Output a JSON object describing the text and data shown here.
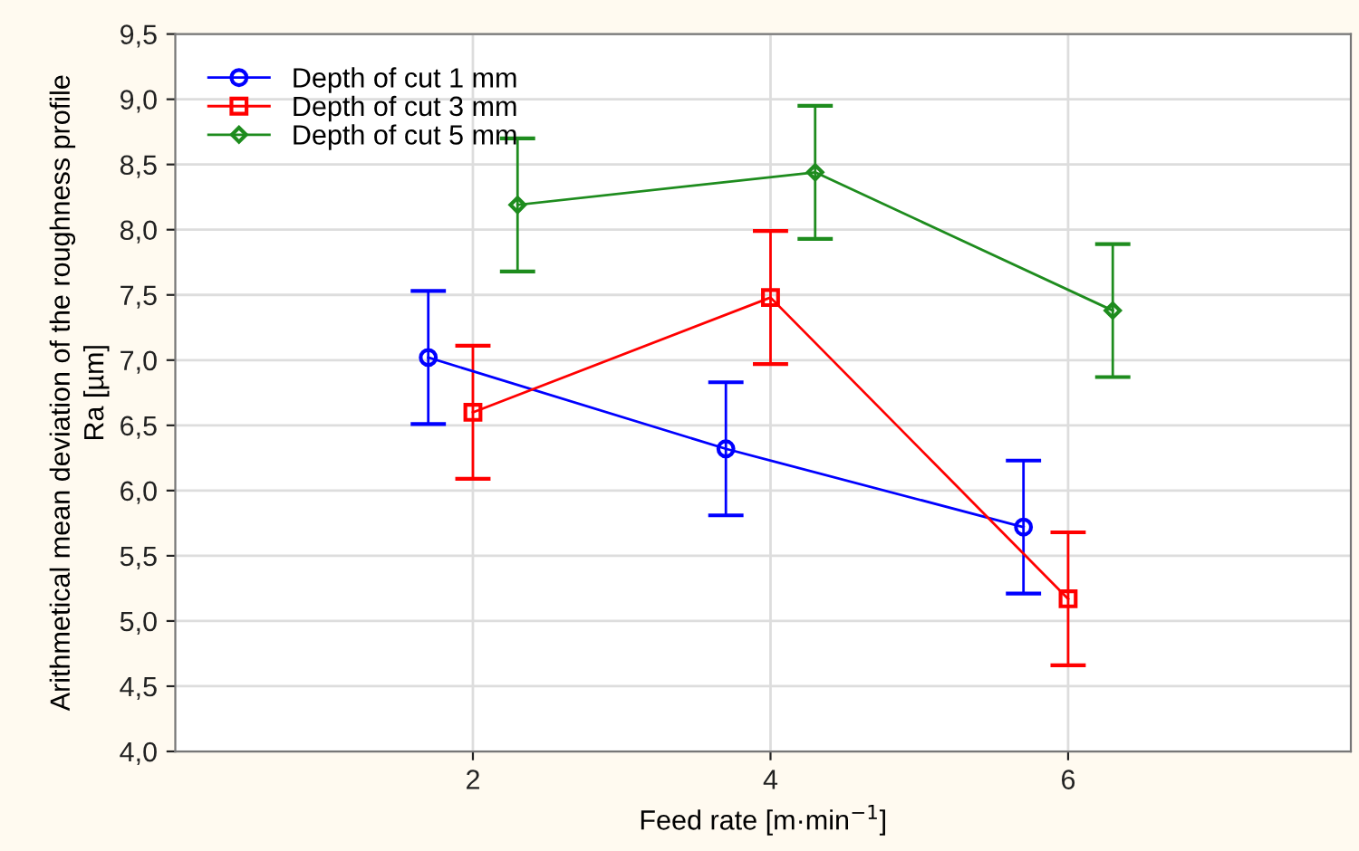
{
  "chart_data": {
    "type": "line",
    "xlabel": "Feed rate [m·min$^{−1}$]",
    "ylabel": "Arithmetical mean deviation of the roughness profile\nRa [µm]",
    "series": [
      {
        "name": "Depth of cut 1 mm",
        "color": "#0000ff",
        "marker": "circle",
        "x": [
          1.7,
          3.7,
          5.7
        ],
        "values": [
          7.02,
          6.32,
          5.72
        ],
        "errors": [
          0.51,
          0.51,
          0.51
        ]
      },
      {
        "name": "Depth of cut 3 mm",
        "color": "#ff0000",
        "marker": "square",
        "x": [
          2,
          4,
          6
        ],
        "values": [
          6.6,
          7.48,
          5.17
        ],
        "errors": [
          0.51,
          0.51,
          0.51
        ]
      },
      {
        "name": "Depth of cut 5 mm",
        "color": "#1e8c1e",
        "marker": "diamond",
        "x": [
          2.3,
          4.3,
          6.3
        ],
        "values": [
          8.19,
          8.44,
          7.38
        ],
        "errors": [
          0.51,
          0.51,
          0.51
        ]
      }
    ],
    "xlim": [
      0,
      7.9
    ],
    "xticks": [
      2,
      4,
      6
    ],
    "ylim": [
      4.0,
      9.5
    ],
    "yticks": [
      {
        "value": 4.0,
        "label": "4,0"
      },
      {
        "value": 4.5,
        "label": "4,5"
      },
      {
        "value": 5.0,
        "label": "5,0"
      },
      {
        "value": 5.5,
        "label": "5,5"
      },
      {
        "value": 6.0,
        "label": "6,0"
      },
      {
        "value": 6.5,
        "label": "6,5"
      },
      {
        "value": 7.0,
        "label": "7,0"
      },
      {
        "value": 7.5,
        "label": "7,5"
      },
      {
        "value": 8.0,
        "label": "8,0"
      },
      {
        "value": 8.5,
        "label": "8,5"
      },
      {
        "value": 9.0,
        "label": "9,0"
      },
      {
        "value": 9.5,
        "label": "9,5"
      }
    ],
    "grid": true,
    "legend": "top left",
    "line_style": "solid"
  }
}
